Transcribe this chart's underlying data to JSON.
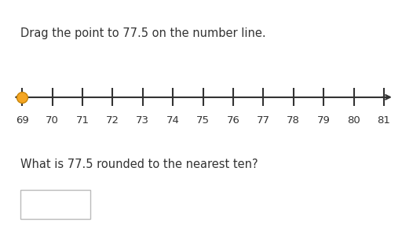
{
  "title_text": "Drag the point to 77.5 on the number line.",
  "question_text": "What is 77.5 rounded to the nearest ten?",
  "tick_labels": [
    69,
    70,
    71,
    72,
    73,
    74,
    75,
    76,
    77,
    78,
    79,
    80,
    81
  ],
  "point_value": 69,
  "point_color": "#F5A623",
  "point_outline": "#C8850A",
  "line_color": "#333333",
  "text_color": "#333333",
  "background_color": "#ffffff",
  "title_fontsize": 10.5,
  "question_fontsize": 10.5,
  "tick_fontsize": 9.5
}
